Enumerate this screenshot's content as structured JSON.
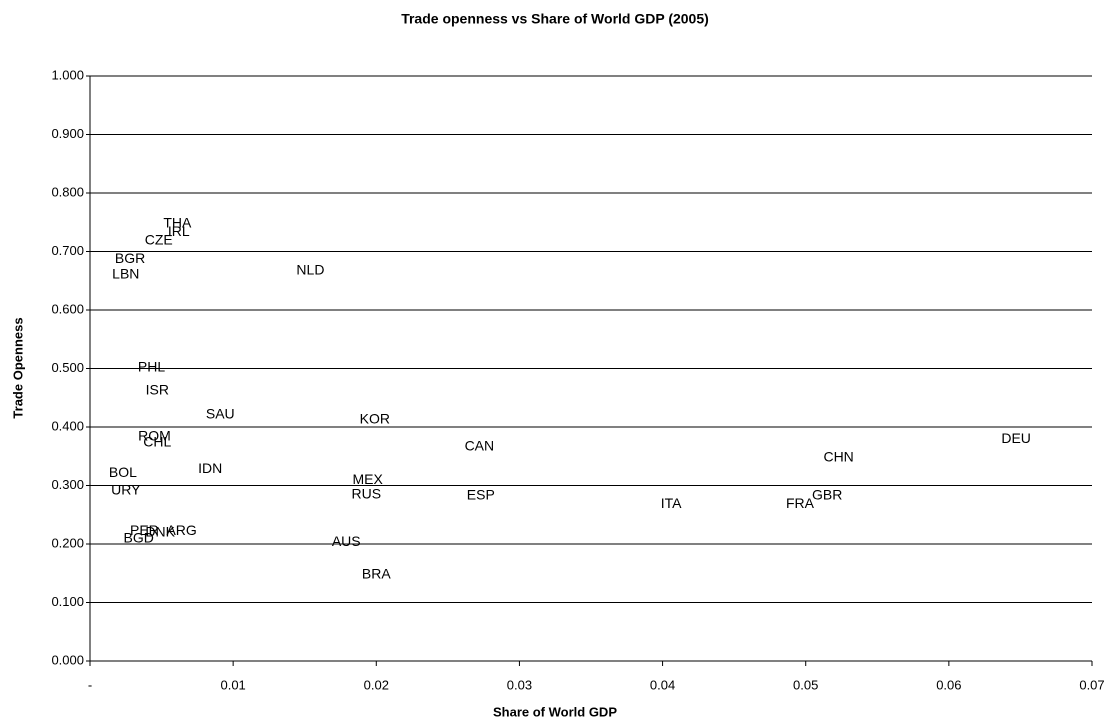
{
  "chart_data": {
    "type": "scatter",
    "title": "Trade openness vs Share of World GDP (2005)",
    "x_label": "Share of World GDP",
    "y_label": "Trade Openness",
    "labels": [
      "THA",
      "IRL",
      "CZE",
      "BGR",
      "LBN",
      "NLD",
      "PHL",
      "ISR",
      "SAU",
      "KOR",
      "ROM",
      "CHL",
      "CAN",
      "DEU",
      "CHN",
      "IDN",
      "BOL",
      "MEX",
      "URY",
      "RUS",
      "ESP",
      "GBR",
      "ITA",
      "FRA",
      "PER",
      "ARG",
      "DNK",
      "BGD",
      "AUS",
      "BRA"
    ],
    "x": [
      0.0061,
      0.0062,
      0.0048,
      0.0028,
      0.0025,
      0.0154,
      0.0043,
      0.0047,
      0.0091,
      0.0199,
      0.0045,
      0.0047,
      0.0272,
      0.0647,
      0.0523,
      0.0084,
      0.0023,
      0.0194,
      0.0025,
      0.0193,
      0.0273,
      0.0515,
      0.0406,
      0.0496,
      0.0038,
      0.0064,
      0.0049,
      0.0034,
      0.0179,
      0.02
    ],
    "y": [
      0.747,
      0.733,
      0.718,
      0.687,
      0.66,
      0.667,
      0.501,
      0.462,
      0.421,
      0.412,
      0.383,
      0.373,
      0.366,
      0.379,
      0.347,
      0.328,
      0.321,
      0.309,
      0.291,
      0.284,
      0.282,
      0.282,
      0.268,
      0.268,
      0.222,
      0.222,
      0.219,
      0.209,
      0.203,
      0.147
    ],
    "xlim": [
      0,
      0.07
    ],
    "ylim": [
      0,
      1
    ],
    "xticks": [
      {
        "value": 0,
        "label": "-"
      },
      0.01,
      0.02,
      0.03,
      0.04,
      0.05,
      0.06,
      0.07
    ],
    "yticks": [
      {
        "value": 0,
        "label": "0.000"
      },
      {
        "value": 0.1,
        "label": "0.100"
      },
      {
        "value": 0.2,
        "label": "0.200"
      },
      {
        "value": 0.3,
        "label": "0.300"
      },
      {
        "value": 0.4,
        "label": "0.400"
      },
      {
        "value": 0.5,
        "label": "0.500"
      },
      {
        "value": 0.6,
        "label": "0.600"
      },
      {
        "value": 0.7,
        "label": "0.700"
      },
      {
        "value": 0.8,
        "label": "0.800"
      },
      {
        "value": 0.9,
        "label": "0.900"
      },
      {
        "value": 1,
        "label": "1.000"
      }
    ],
    "grid": true
  }
}
